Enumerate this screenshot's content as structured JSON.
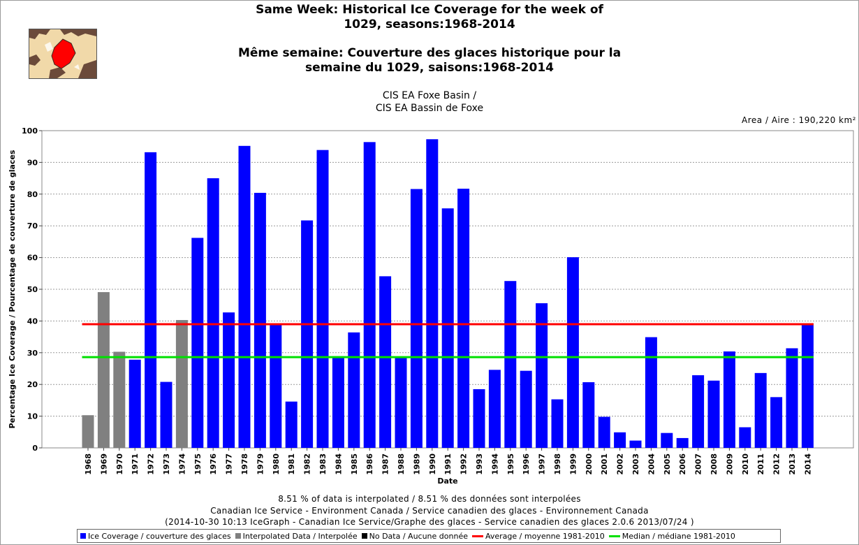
{
  "header": {
    "title_en_1": "Same Week: Historical Ice Coverage for the week of",
    "title_en_2": "1029, seasons:1968-2014",
    "title_fr_1": "Même semaine: Couverture des glaces historique pour la",
    "title_fr_2": "semaine du 1029, saisons:1968-2014",
    "region_1": "CIS EA Foxe Basin /",
    "region_2": "CIS EA Bassin de Foxe",
    "area": "Area / Aire : 190,220 km²"
  },
  "colors": {
    "ice": "#0000ff",
    "interpolated": "#808080",
    "no_data": "#000000",
    "average": "#ff0000",
    "median": "#00e000"
  },
  "chart_data": {
    "type": "bar",
    "xlabel": "Date",
    "ylabel": "Percentage Ice Coverage / Pourcentage de couverture de glaces",
    "ylim": [
      0,
      100
    ],
    "yticks": [
      0,
      10,
      20,
      30,
      40,
      50,
      60,
      70,
      80,
      90,
      100
    ],
    "grid": true,
    "categories": [
      "1968",
      "1969",
      "1970",
      "1971",
      "1972",
      "1973",
      "1974",
      "1975",
      "1976",
      "1977",
      "1978",
      "1979",
      "1980",
      "1981",
      "1982",
      "1983",
      "1984",
      "1985",
      "1986",
      "1987",
      "1988",
      "1989",
      "1990",
      "1991",
      "1992",
      "1993",
      "1994",
      "1995",
      "1996",
      "1997",
      "1998",
      "1999",
      "2000",
      "2001",
      "2002",
      "2003",
      "2004",
      "2005",
      "2006",
      "2007",
      "2008",
      "2009",
      "2010",
      "2011",
      "2012",
      "2013",
      "2014"
    ],
    "values": [
      10.3,
      49.1,
      30.3,
      27.8,
      93.2,
      20.8,
      40.3,
      66.2,
      85.0,
      42.7,
      95.2,
      80.4,
      39.0,
      14.6,
      71.7,
      93.9,
      28.9,
      36.4,
      96.4,
      54.1,
      28.3,
      81.6,
      97.3,
      75.5,
      81.7,
      18.5,
      24.6,
      52.6,
      24.3,
      45.6,
      15.3,
      60.1,
      20.7,
      9.8,
      4.9,
      2.3,
      34.9,
      4.7,
      3.1,
      22.9,
      21.2,
      30.4,
      6.5,
      23.6,
      16.0,
      31.4,
      39.3
    ],
    "interpolated": [
      "1968",
      "1969",
      "1970",
      "1974"
    ],
    "average": 39.0,
    "median": 28.6,
    "legend": [
      {
        "label": "Ice Coverage / couverture des glaces",
        "kind": "square",
        "color": "#0000ff"
      },
      {
        "label": "Interpolated Data / Interpolée",
        "kind": "square",
        "color": "#808080"
      },
      {
        "label": "No Data / Aucune donnée",
        "kind": "square",
        "color": "#000000"
      },
      {
        "label": "Average / moyenne 1981-2010",
        "kind": "line",
        "color": "#ff0000"
      },
      {
        "label": "Median / médiane 1981-2010",
        "kind": "line",
        "color": "#00e000"
      }
    ]
  },
  "footer": {
    "line1": "8.51 % of data is interpolated / 8.51 % des données sont interpolées",
    "line2": "Canadian Ice Service - Environment Canada / Service canadien des glaces - Environnement Canada",
    "line3": "(2014-10-30 10:13 IceGraph - Canadian Ice Service/Graphe des glaces - Service canadien des glaces 2.0.6 2013/07/24 )"
  }
}
